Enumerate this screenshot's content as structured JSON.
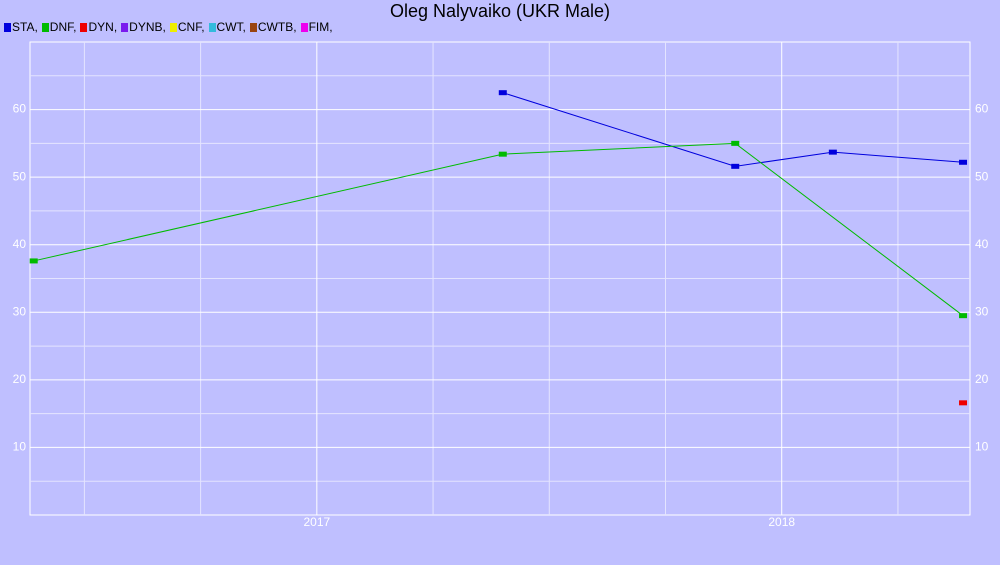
{
  "chart_data": {
    "type": "line",
    "title": "Oleg Nalyvaiko (UKR Male)",
    "legend_separator": ",",
    "xlim": [
      2016.383,
      2018.405
    ],
    "xticks": [
      2017,
      2018
    ],
    "x_minor_ticks": [
      2016.5,
      2016.75,
      2017.25,
      2017.5,
      2017.75,
      2018.25
    ],
    "ylim": [
      0,
      70
    ],
    "yticks": [
      10,
      20,
      30,
      40,
      50,
      60
    ],
    "y_minor_ticks": [
      5,
      15,
      25,
      35,
      45,
      55,
      65
    ],
    "grid": true,
    "series": [
      {
        "name": "STA",
        "color": "#0000dd",
        "x": [
          2017.4,
          2017.9,
          2018.11,
          2018.39
        ],
        "values": [
          62.5,
          51.6,
          53.7,
          52.2
        ]
      },
      {
        "name": "DNF",
        "color": "#00bb00",
        "x": [
          2016.391,
          2017.4,
          2017.9,
          2018.39
        ],
        "values": [
          37.6,
          53.4,
          55.0,
          29.5
        ]
      },
      {
        "name": "DYN",
        "color": "#ee0000",
        "x": [
          2018.39
        ],
        "values": [
          16.6
        ]
      },
      {
        "name": "DYNB",
        "color": "#7a1aee",
        "x": [],
        "values": []
      },
      {
        "name": "CNF",
        "color": "#eeee00",
        "x": [],
        "values": []
      },
      {
        "name": "CWT",
        "color": "#33bbdd",
        "x": [],
        "values": []
      },
      {
        "name": "CWTB",
        "color": "#994411",
        "x": [],
        "values": []
      },
      {
        "name": "FIM",
        "color": "#ee00ee",
        "x": [],
        "values": []
      }
    ]
  }
}
